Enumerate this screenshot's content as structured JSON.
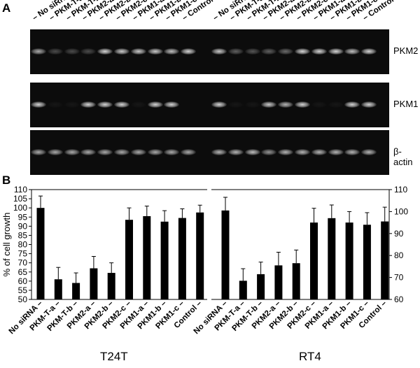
{
  "panel_a": {
    "label": "A",
    "lanes": [
      "No siRNA",
      "PKM-T-a",
      "PKM-T-b",
      "PKM2-a",
      "PKM2-b",
      "PKM2-c",
      "PKM1-a",
      "PKM1-b",
      "PKM1-c",
      "Control"
    ],
    "genes": [
      {
        "name": "PKM2",
        "left": [
          0.75,
          0.3,
          0.3,
          0.3,
          0.95,
          0.9,
          0.9,
          0.9,
          0.85,
          0.95
        ],
        "right": [
          0.9,
          0.4,
          0.35,
          0.4,
          0.45,
          0.95,
          0.95,
          0.95,
          0.85,
          0.95
        ]
      },
      {
        "name": "PKM1",
        "left": [
          0.95,
          0.05,
          0.05,
          0.95,
          0.95,
          0.95,
          0.05,
          0.95,
          0.95,
          0.0
        ],
        "right": [
          0.95,
          0.05,
          0.05,
          0.9,
          0.8,
          0.95,
          0.05,
          0.05,
          0.95,
          0.95
        ]
      },
      {
        "name": "β-actin",
        "left": [
          0.75,
          0.75,
          0.75,
          0.75,
          0.75,
          0.75,
          0.75,
          0.75,
          0.75,
          0.75
        ],
        "right": [
          0.8,
          0.8,
          0.85,
          0.65,
          0.8,
          0.8,
          0.8,
          0.8,
          0.8,
          0.8
        ]
      }
    ]
  },
  "panel_b": {
    "label": "B",
    "cell_lines": [
      "T24T",
      "RT4"
    ]
  },
  "chart_data": {
    "type": "bar",
    "ylabel": "% of cell growth",
    "categories": [
      "No siRNA",
      "PKM-T-a",
      "PKM-T-b",
      "PKM2-a",
      "PKM2-b",
      "PKM2-c",
      "PKM1-a",
      "PKM1-b",
      "PKM1-c",
      "Control"
    ],
    "left_axis": {
      "ylim": [
        50,
        110
      ],
      "ticks": [
        50,
        55,
        60,
        65,
        70,
        75,
        80,
        85,
        90,
        95,
        100,
        105,
        110
      ]
    },
    "right_axis": {
      "ylim": [
        60,
        110
      ],
      "ticks": [
        60,
        70,
        80,
        90,
        100,
        110
      ]
    },
    "series": [
      {
        "group": "T24T",
        "axis": "left",
        "values": [
          100,
          61,
          59,
          67,
          64.5,
          93.5,
          95.5,
          92.5,
          94.5,
          97.5
        ],
        "errors": [
          6.5,
          6.5,
          5.5,
          6.5,
          5.5,
          6.5,
          5.5,
          6,
          5,
          4
        ]
      },
      {
        "group": "RT4",
        "axis": "right",
        "values": [
          100.5,
          68.5,
          71.5,
          75.5,
          76.5,
          95,
          97,
          95,
          94,
          95.5
        ],
        "errors": [
          6,
          5.5,
          5.5,
          6,
          6,
          6.5,
          6,
          5,
          5.5,
          6.5
        ]
      }
    ],
    "color": "#000000"
  }
}
